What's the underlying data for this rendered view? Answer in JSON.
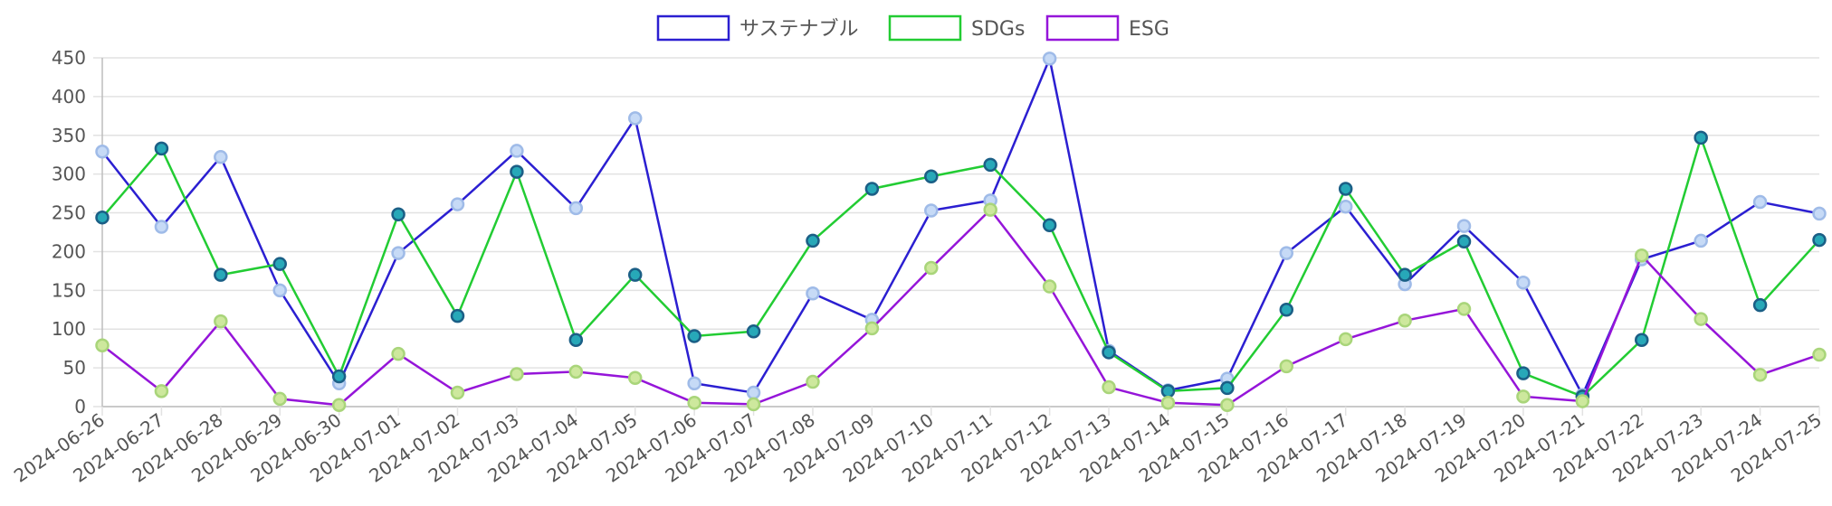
{
  "chart_data": {
    "type": "line",
    "title": "",
    "xlabel": "",
    "ylabel": "",
    "ylim": [
      0,
      450
    ],
    "yticks": [
      0,
      50,
      100,
      150,
      200,
      250,
      300,
      350,
      400,
      450
    ],
    "grid": true,
    "legend_position": "top-center",
    "categories": [
      "2024-06-26",
      "2024-06-27",
      "2024-06-28",
      "2024-06-29",
      "2024-06-30",
      "2024-07-01",
      "2024-07-02",
      "2024-07-03",
      "2024-07-04",
      "2024-07-05",
      "2024-07-06",
      "2024-07-07",
      "2024-07-08",
      "2024-07-09",
      "2024-07-10",
      "2024-07-11",
      "2024-07-12",
      "2024-07-13",
      "2024-07-14",
      "2024-07-15",
      "2024-07-16",
      "2024-07-17",
      "2024-07-18",
      "2024-07-19",
      "2024-07-20",
      "2024-07-21",
      "2024-07-22",
      "2024-07-23",
      "2024-07-24",
      "2024-07-25"
    ],
    "series": [
      {
        "name": "サステナブル",
        "color": "#2b1fd1",
        "point_fill": "#c6daf6",
        "point_stroke": "#9fbbe8",
        "values": [
          329,
          232,
          322,
          150,
          30,
          198,
          261,
          330,
          256,
          372,
          30,
          18,
          146,
          112,
          253,
          266,
          449,
          72,
          21,
          36,
          198,
          258,
          158,
          233,
          160,
          15,
          190,
          214,
          264,
          249
        ]
      },
      {
        "name": "SDGs",
        "color": "#22cc33",
        "point_fill": "#27a8b8",
        "point_stroke": "#1b5f86",
        "values": [
          244,
          333,
          170,
          184,
          39,
          248,
          117,
          303,
          86,
          170,
          91,
          97,
          214,
          281,
          297,
          312,
          234,
          70,
          20,
          24,
          125,
          281,
          170,
          213,
          43,
          13,
          86,
          347,
          131,
          215
        ]
      },
      {
        "name": "ESG",
        "color": "#9515d9",
        "point_fill": "#cde89d",
        "point_stroke": "#a9d57a",
        "values": [
          79,
          20,
          110,
          10,
          2,
          68,
          18,
          42,
          45,
          37,
          5,
          3,
          32,
          101,
          179,
          254,
          155,
          25,
          5,
          2,
          52,
          87,
          111,
          126,
          13,
          7,
          195,
          113,
          41,
          67
        ]
      }
    ]
  }
}
